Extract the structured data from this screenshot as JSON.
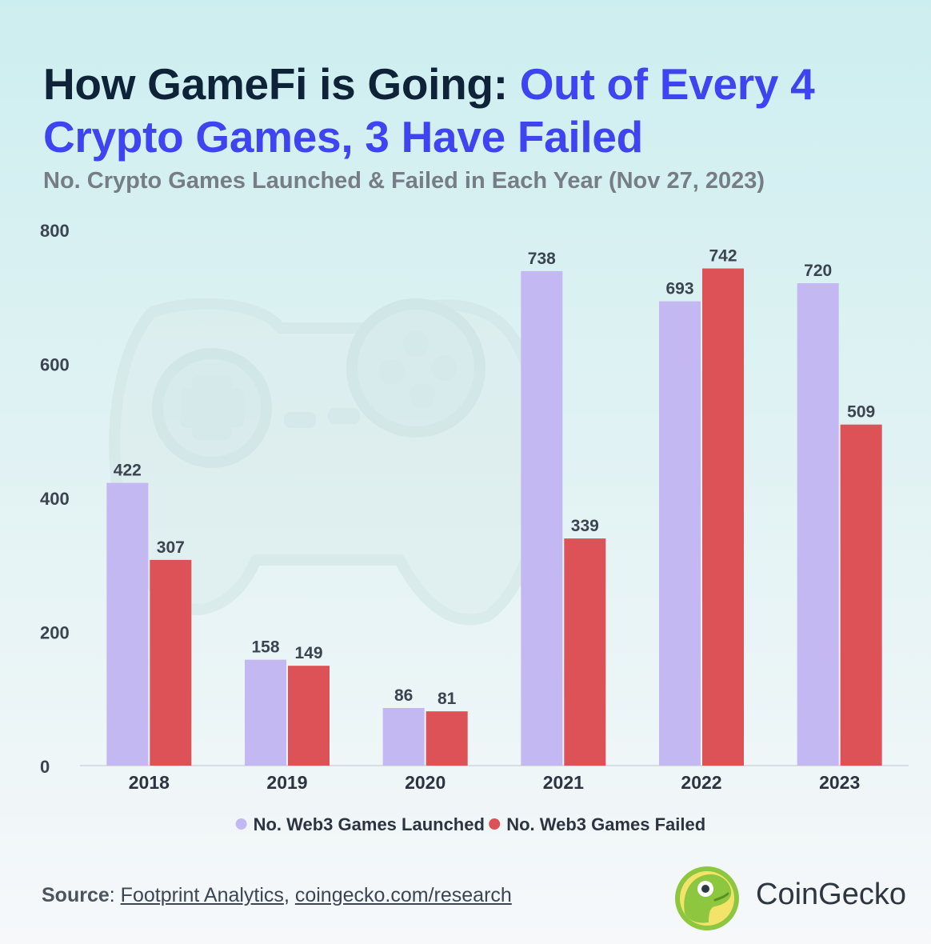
{
  "title": {
    "part1": "How GameFi is Going: ",
    "part2": "Out of Every 4 Crypto Games, 3 Have Failed"
  },
  "subtitle": "No. Crypto Games Launched & Failed in Each Year (Nov 27, 2023)",
  "colors": {
    "launched": "#c4b8f2",
    "failed": "#dd5257",
    "title_dark": "#0e2238",
    "title_accent": "#3d44f0"
  },
  "chart_data": {
    "type": "bar",
    "categories": [
      "2018",
      "2019",
      "2020",
      "2021",
      "2022",
      "2023"
    ],
    "series": [
      {
        "name": "No. Web3 Games Launched",
        "values": [
          422,
          158,
          86,
          738,
          693,
          720
        ]
      },
      {
        "name": "No. Web3 Games Failed",
        "values": [
          307,
          149,
          81,
          339,
          742,
          509
        ]
      }
    ],
    "yticks": [
      0,
      200,
      400,
      600,
      800
    ],
    "ylim": [
      0,
      800
    ],
    "grid": false,
    "legend_position": "bottom-center",
    "data_labels": true
  },
  "source": {
    "label": "Source",
    "sep": ": ",
    "link1": "Footprint Analytics",
    "comma": ", ",
    "link2": "coingecko.com/research"
  },
  "brand": {
    "name": "CoinGecko",
    "logo_icon": "gecko-logo-icon"
  }
}
